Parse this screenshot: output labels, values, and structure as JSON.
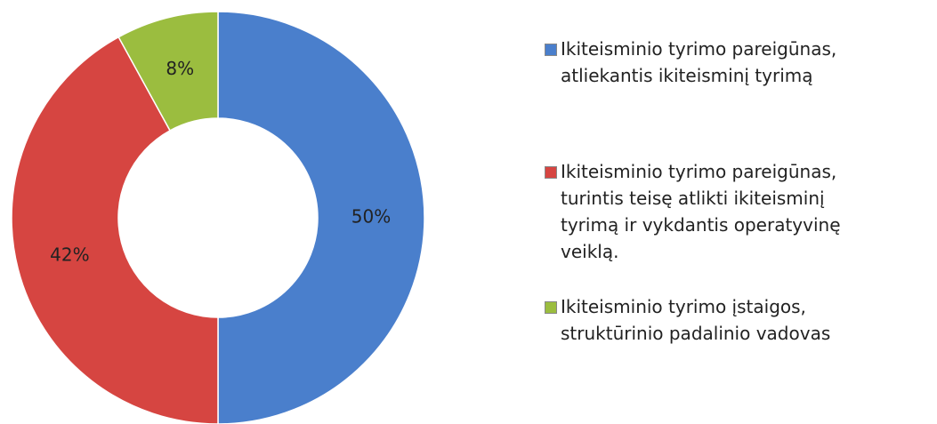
{
  "chart_data": {
    "type": "pie",
    "categories": [
      "Ikiteisminio tyrimo pareigūnas, atliekantis ikiteisminį tyrimą",
      "Ikiteisminio tyrimo pareigūnas, turintis teisę atlikti ikiteisminį tyrimą ir vykdantis operatyvinę veiklą.",
      "Ikiteisminio tyrimo įstaigos, struktūrinio padalinio vadovas"
    ],
    "values": [
      50,
      42,
      8
    ],
    "value_labels": [
      "50%",
      "42%",
      "8%"
    ],
    "colors": [
      "#4a7fcc",
      "#d64541",
      "#9bbd3f"
    ],
    "legend": "right"
  }
}
